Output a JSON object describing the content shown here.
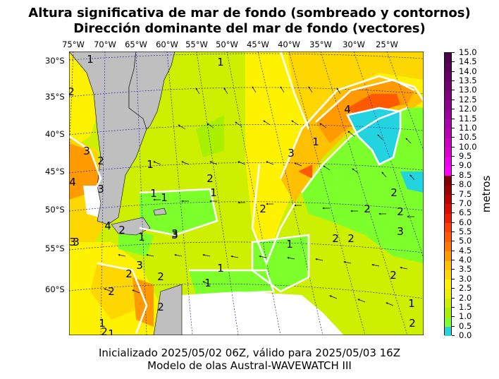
{
  "title_line1": "Altura significativa de mar de fondo (sombreado y contornos)",
  "title_line2": "Dirección dominante del mar de fondo (vectores)",
  "footer_line1": "Inicializado 2025/05/02 06Z, válido para 2025/05/03 16Z",
  "footer_line2": "Modelo de olas Austral-WAVEWATCH III",
  "lon_labels": [
    "75°W",
    "70°W",
    "65°W",
    "60°W",
    "55°W",
    "50°W",
    "45°W",
    "40°W",
    "35°W",
    "30°W",
    "25°W"
  ],
  "lat_labels": [
    "30°S",
    "35°S",
    "40°S",
    "45°S",
    "50°S",
    "55°S",
    "60°S"
  ],
  "colorbar": {
    "label": "metros",
    "ticks": [
      "0.0",
      "0.5",
      "1.0",
      "1.5",
      "2.0",
      "2.5",
      "3.0",
      "3.5",
      "4.0",
      "4.5",
      "5.0",
      "5.5",
      "6.0",
      "6.5",
      "7.0",
      "7.5",
      "8.0",
      "8.5",
      "9.0",
      "9.5",
      "10.0",
      "10.5",
      "11.0",
      "11.5",
      "12.0",
      "12.5",
      "13.0",
      "13.5",
      "14.0",
      "14.5",
      "15.0"
    ],
    "colors": [
      "#22d3e0",
      "#7cff2a",
      "#a8f000",
      "#cdf000",
      "#eaf000",
      "#fff200",
      "#ffd700",
      "#ffc000",
      "#ff9a00",
      "#ff7800",
      "#ff5a00",
      "#ff3c00",
      "#f01c00",
      "#d80a00",
      "#bb0000",
      "#9c0000",
      "#800000",
      "#ff00ff",
      "#ee00ee",
      "#dd00cc",
      "#cc00c0",
      "#bb00b4",
      "#aa00aa",
      "#9c009c",
      "#8c008c",
      "#800080",
      "#730073",
      "#660066",
      "#5a005a",
      "#4d004d"
    ]
  },
  "contour_labels": [
    "1",
    "2",
    "2",
    "3",
    "4",
    "3",
    "4",
    "2",
    "3",
    "1",
    "1",
    "1",
    "2",
    "1",
    "2",
    "3",
    "4",
    "1",
    "1",
    "3",
    "1",
    "2",
    "2",
    "1",
    "2",
    "2",
    "1",
    "1",
    "2",
    "3",
    "2",
    "3",
    "2",
    "1",
    "2",
    "2",
    "3",
    "2",
    "2",
    "1",
    "3",
    "1",
    "2"
  ],
  "map_colors": {
    "land": "#bfbfbf",
    "sea_ice": "#ffffff",
    "cyan": "#22d3e0",
    "green": "#7cff2a",
    "lime": "#a8f000",
    "yellowgreen": "#cdf000",
    "yellow": "#fff200",
    "gold": "#ffd700",
    "amber": "#ffc000",
    "orange": "#ff9a00",
    "darkorange": "#ff5a00"
  }
}
